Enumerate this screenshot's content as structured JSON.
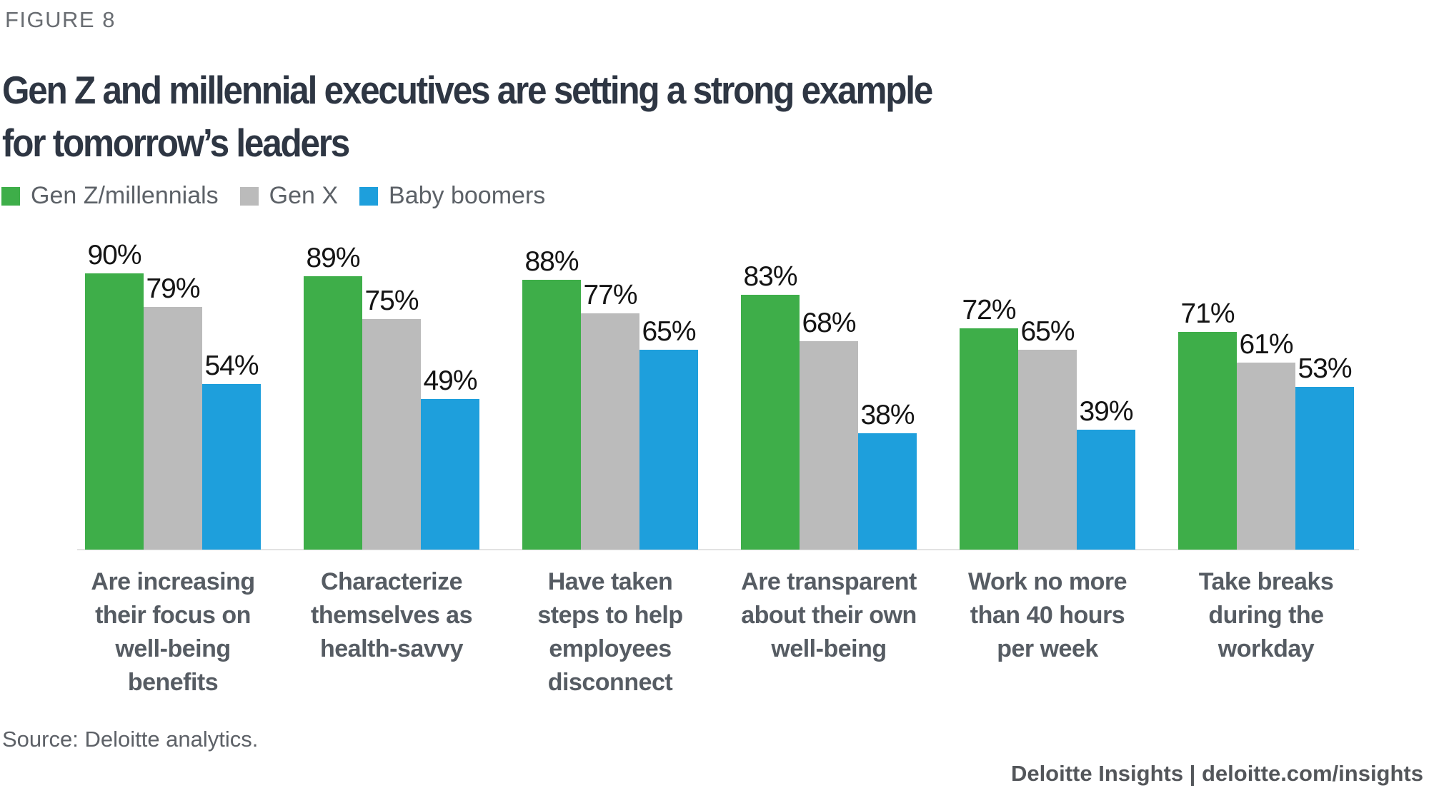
{
  "figure_label": "FIGURE 8",
  "title": {
    "line1": "Gen Z and millennial executives are setting a strong example",
    "line2": "for tomorrow’s leaders"
  },
  "source": "Source: Deloitte analytics.",
  "footer": {
    "text": "Deloitte Insights | deloitte.com/insights"
  },
  "colors": {
    "gen_z_millennials": "#3eae49",
    "gen_x": "#bbbbbb",
    "baby_boomers": "#1e9fdc",
    "baseline_rule": "#e2e2e2"
  },
  "chart_data": {
    "type": "bar",
    "title": "Gen Z and millennial executives are setting a strong example for tomorrow’s leaders",
    "xlabel": "",
    "ylabel": "",
    "ylim": [
      0,
      100
    ],
    "grid": false,
    "legend_position": "top-left",
    "data_labels": true,
    "value_suffix": "%",
    "categories": [
      "Are increasing\ntheir focus on\nwell-being\nbenefits",
      "Characterize\nthemselves as\nhealth-savvy",
      "Have taken\nsteps to help\nemployees\ndisconnect",
      "Are transparent\nabout their own\nwell-being",
      "Work no more\nthan 40 hours\nper week",
      "Take breaks\nduring the\nworkday"
    ],
    "series": [
      {
        "name": "Gen Z/millennials",
        "color": "#3eae49",
        "values": [
          90,
          89,
          88,
          83,
          72,
          71
        ]
      },
      {
        "name": "Gen X",
        "color": "#bbbbbb",
        "values": [
          79,
          75,
          77,
          68,
          65,
          61
        ]
      },
      {
        "name": "Baby boomers",
        "color": "#1e9fdc",
        "values": [
          54,
          49,
          65,
          38,
          39,
          53
        ]
      }
    ]
  }
}
